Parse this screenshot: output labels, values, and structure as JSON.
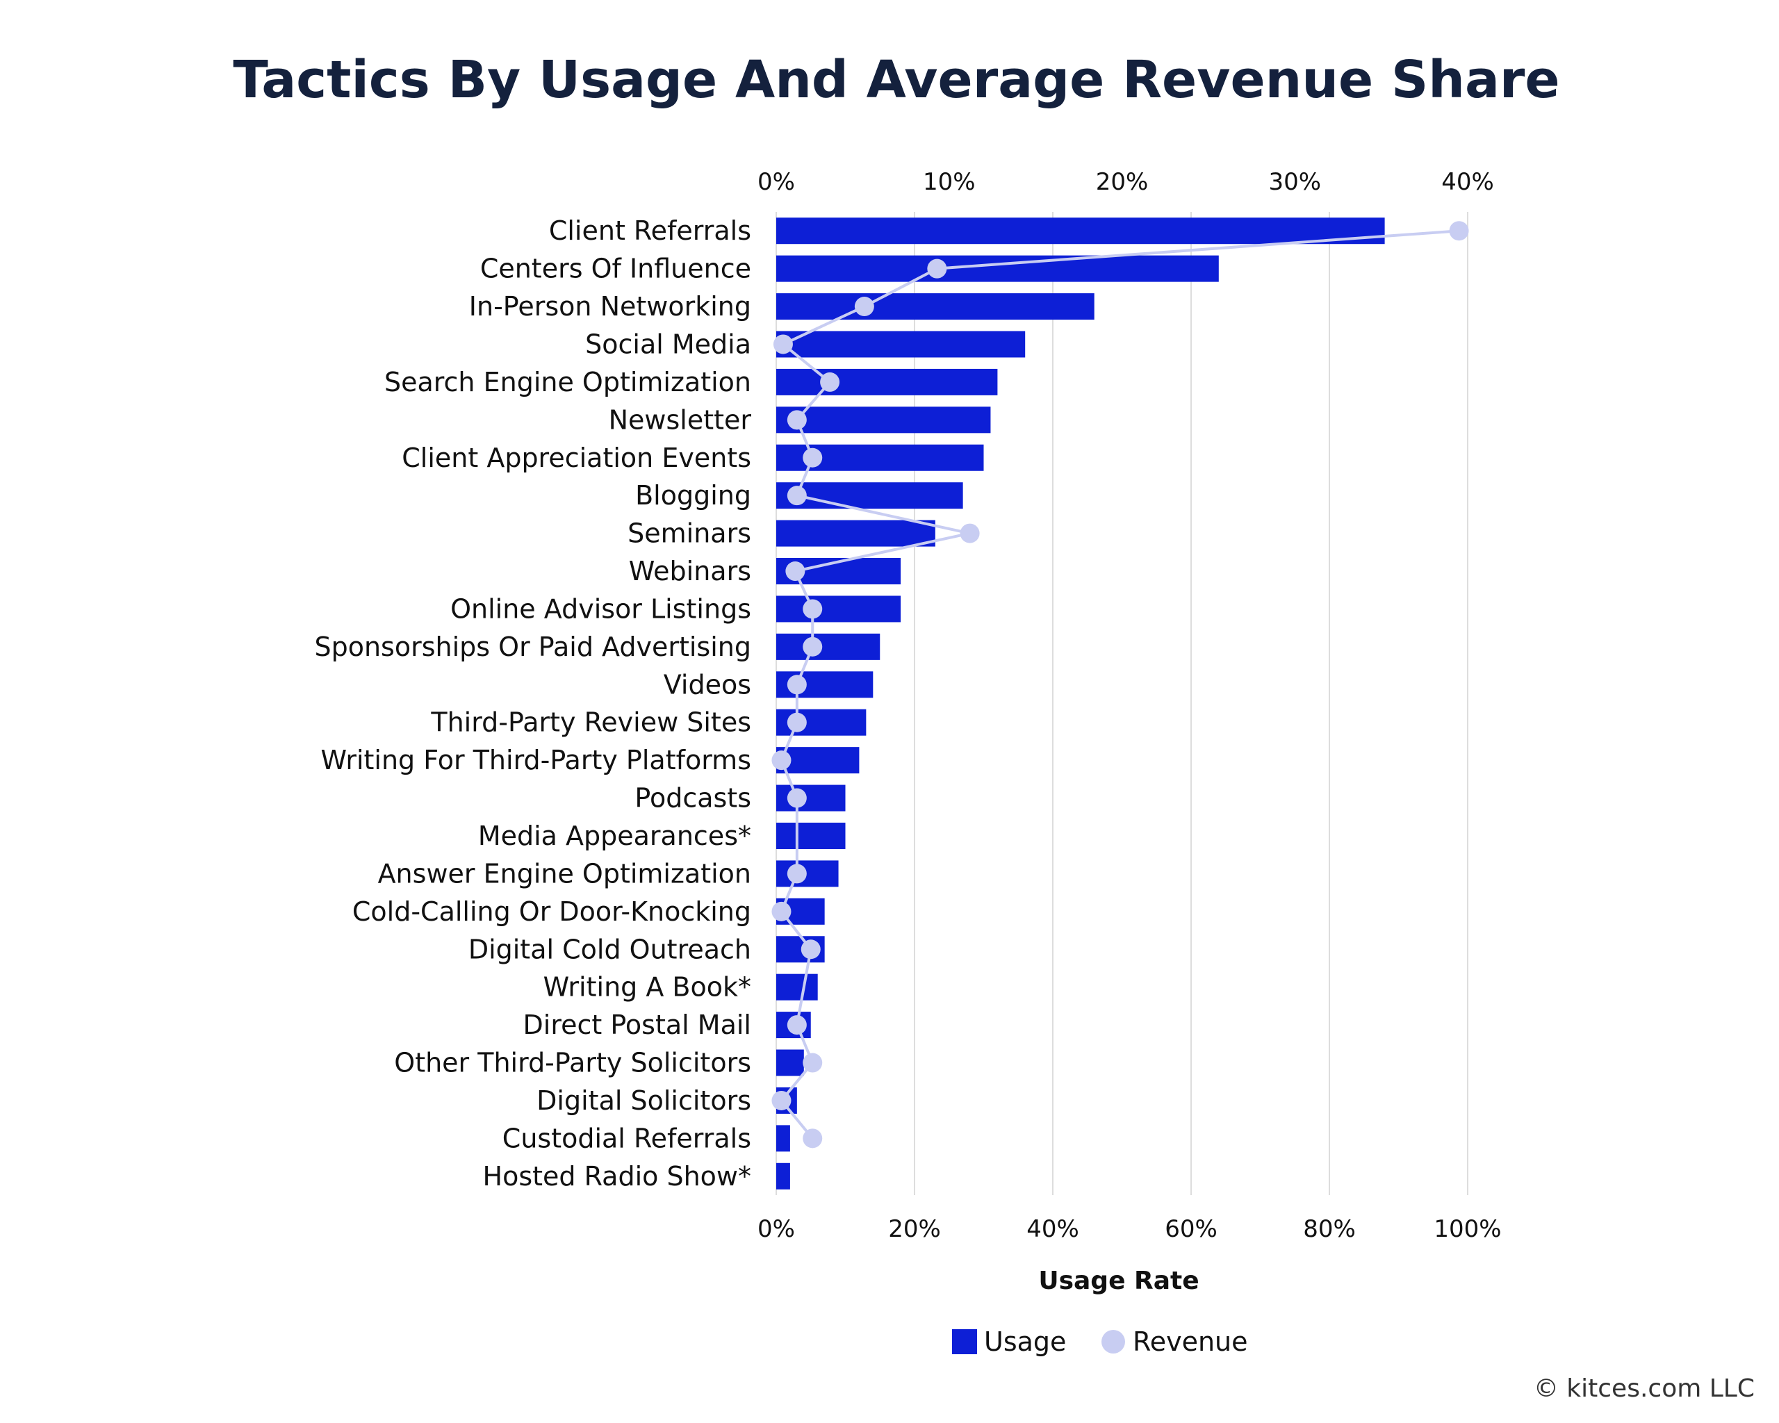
{
  "colors": {
    "usage": "#0d1fd6",
    "revenue": "#c8cdf2",
    "grid": "#dddddd",
    "title": "#14213d"
  },
  "chart_data": {
    "type": "bar",
    "orientation": "horizontal",
    "title": "Tactics By Usage And Average Revenue Share",
    "xlabel": "Usage Rate",
    "top_axis_range": [
      0,
      40
    ],
    "top_axis_ticks": [
      "0%",
      "10%",
      "20%",
      "30%",
      "40%"
    ],
    "bottom_axis_range": [
      0,
      100
    ],
    "bottom_axis_ticks": [
      "0%",
      "20%",
      "40%",
      "60%",
      "80%",
      "100%"
    ],
    "grid": true,
    "legend_position": "bottom",
    "source": "© kitces.com LLC",
    "categories": [
      "Client Referrals",
      "Centers Of Influence",
      "In-Person Networking",
      "Social Media",
      "Search Engine Optimization",
      "Newsletter",
      "Client Appreciation Events",
      "Blogging",
      "Seminars",
      "Webinars",
      "Online Advisor Listings",
      "Sponsorships Or Paid Advertising",
      "Videos",
      "Third-Party Review Sites",
      "Writing For Third-Party Platforms",
      "Podcasts",
      "Media Appearances*",
      "Answer Engine Optimization",
      "Cold-Calling Or Door-Knocking",
      "Digital Cold Outreach",
      "Writing A Book*",
      "Direct Postal Mail",
      "Other Third-Party Solicitors",
      "Digital Solicitors",
      "Custodial Referrals",
      "Hosted Radio Show*"
    ],
    "series": [
      {
        "name": "Usage",
        "type": "bar",
        "axis": "bottom",
        "values": [
          88,
          64,
          46,
          36,
          32,
          31,
          30,
          27,
          23,
          18,
          18,
          15,
          14,
          13,
          12,
          10,
          10,
          9,
          7,
          7,
          6,
          5,
          4,
          3,
          2,
          2
        ]
      },
      {
        "name": "Revenue",
        "type": "line",
        "axis": "top",
        "values": [
          39.5,
          9.3,
          5.1,
          0.4,
          3.1,
          1.2,
          2.1,
          1.2,
          11.2,
          1.1,
          2.1,
          2.1,
          1.2,
          1.2,
          0.3,
          1.2,
          null,
          1.2,
          0.3,
          2.0,
          null,
          1.2,
          2.1,
          0.3,
          2.1,
          null
        ]
      }
    ]
  }
}
